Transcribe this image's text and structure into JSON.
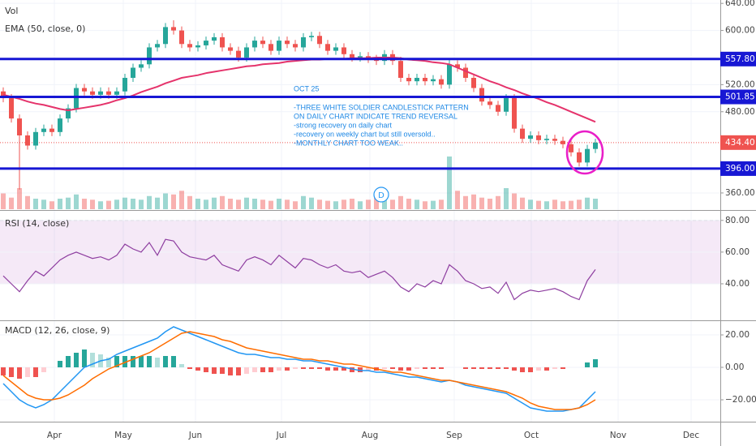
{
  "xaxis": {
    "xlim": [
      -0.4,
      88.4
    ],
    "xticks": [
      {
        "value": 6.3,
        "label": "Apr"
      },
      {
        "value": 14.8,
        "label": "May"
      },
      {
        "value": 23.7,
        "label": "Jun"
      },
      {
        "value": 34.3,
        "label": "Jul"
      },
      {
        "value": 45.2,
        "label": "Aug"
      },
      {
        "value": 55.6,
        "label": "Sep"
      },
      {
        "value": 65.1,
        "label": "Oct"
      },
      {
        "value": 75.8,
        "label": "Nov"
      },
      {
        "value": 84.8,
        "label": "Dec"
      }
    ]
  },
  "chart_data": [
    {
      "type": "candlestick",
      "up_color": "#26a69a",
      "down_color": "#ef5350",
      "ylim": [
        336,
        645
      ],
      "yticks": [
        {
          "value": 640,
          "label": "640.00"
        },
        {
          "value": 600,
          "label": "600.00"
        },
        {
          "value": 520,
          "label": "520.00"
        },
        {
          "value": 480,
          "label": "480.00"
        },
        {
          "value": 360,
          "label": "360.00"
        }
      ],
      "open": [
        510,
        500,
        470,
        445,
        430,
        450,
        455,
        450,
        470,
        485,
        515,
        510,
        505,
        510,
        505,
        510,
        530,
        545,
        550,
        575,
        580,
        605,
        600,
        580,
        575,
        578,
        585,
        590,
        575,
        570,
        560,
        575,
        585,
        580,
        570,
        585,
        580,
        575,
        590,
        592,
        580,
        570,
        575,
        565,
        560,
        562,
        558,
        555,
        565,
        555,
        530,
        525,
        530,
        525,
        528,
        520,
        550,
        545,
        530,
        515,
        495,
        490,
        480,
        500,
        455,
        440,
        445,
        438,
        440,
        437,
        432,
        420,
        405,
        425
      ],
      "high": [
        516,
        506,
        476,
        451,
        456,
        461,
        461,
        476,
        491,
        521,
        521,
        516,
        516,
        516,
        516,
        536,
        551,
        556,
        581,
        586,
        611,
        615,
        606,
        586,
        584,
        591,
        596,
        596,
        581,
        576,
        581,
        591,
        591,
        586,
        591,
        591,
        586,
        596,
        598,
        598,
        586,
        581,
        581,
        571,
        568,
        568,
        564,
        571,
        571,
        561,
        536,
        536,
        536,
        534,
        534,
        558,
        556,
        551,
        536,
        521,
        501,
        496,
        506,
        506,
        461,
        451,
        451,
        446,
        446,
        443,
        438,
        426,
        431,
        440
      ],
      "low": [
        494,
        464,
        365,
        424,
        424,
        444,
        444,
        444,
        464,
        479,
        504,
        499,
        499,
        499,
        499,
        504,
        524,
        539,
        544,
        569,
        574,
        594,
        574,
        569,
        569,
        572,
        579,
        569,
        564,
        554,
        554,
        569,
        574,
        564,
        564,
        574,
        569,
        569,
        584,
        574,
        564,
        564,
        559,
        554,
        554,
        552,
        549,
        549,
        549,
        524,
        519,
        519,
        519,
        519,
        514,
        514,
        539,
        524,
        509,
        489,
        484,
        474,
        474,
        449,
        434,
        434,
        432,
        432,
        431,
        426,
        414,
        399,
        399,
        419
      ],
      "close": [
        500,
        470,
        445,
        430,
        450,
        455,
        450,
        470,
        485,
        515,
        510,
        505,
        510,
        505,
        510,
        530,
        545,
        550,
        575,
        580,
        605,
        600,
        580,
        575,
        578,
        585,
        590,
        575,
        570,
        560,
        575,
        585,
        580,
        570,
        585,
        580,
        575,
        590,
        592,
        580,
        570,
        575,
        565,
        560,
        562,
        558,
        555,
        565,
        555,
        530,
        525,
        530,
        525,
        528,
        520,
        550,
        545,
        530,
        515,
        495,
        490,
        480,
        500,
        455,
        440,
        445,
        438,
        440,
        437,
        432,
        420,
        405,
        425,
        434.4
      ],
      "volume": {
        "name": "Vol",
        "values": [
          30,
          22,
          40,
          25,
          20,
          18,
          15,
          20,
          22,
          28,
          20,
          18,
          15,
          16,
          18,
          22,
          20,
          18,
          25,
          22,
          30,
          28,
          35,
          25,
          20,
          18,
          22,
          25,
          20,
          18,
          22,
          20,
          18,
          16,
          20,
          18,
          15,
          25,
          22,
          18,
          16,
          15,
          18,
          20,
          15,
          18,
          22,
          30,
          18,
          25,
          20,
          18,
          15,
          16,
          18,
          100,
          35,
          25,
          28,
          22,
          20,
          25,
          40,
          30,
          22,
          18,
          16,
          15,
          18,
          15,
          16,
          18,
          22,
          20
        ]
      },
      "series": [
        {
          "name": "EMA (50, close, 0)",
          "color": "#e5336b",
          "values": [
            505,
            502,
            499,
            495,
            492,
            490,
            487,
            484,
            482,
            484,
            486,
            488,
            490,
            493,
            497,
            500,
            504,
            509,
            513,
            517,
            522,
            526,
            530,
            532,
            534,
            537,
            539,
            541,
            543,
            545,
            547,
            548,
            550,
            551,
            552,
            554,
            555,
            556,
            557,
            557,
            558,
            558,
            558,
            559,
            559,
            559,
            560,
            560,
            560,
            559,
            557,
            556,
            555,
            553,
            552,
            550,
            545,
            540,
            535,
            530,
            525,
            521,
            516,
            512,
            507,
            503,
            499,
            494,
            490,
            485,
            480,
            475,
            470,
            465
          ]
        }
      ],
      "levels": [
        {
          "value": 557.8,
          "label": "557.80"
        },
        {
          "value": 501.85,
          "label": "501.85"
        },
        {
          "value": 396,
          "label": "396.00"
        }
      ],
      "level_color": "#1717d4",
      "last_price": {
        "value": 434.4,
        "label": "434.40"
      },
      "annotations": [
        "OCT 25",
        "-THREE WHITE SOLDIER CANDLESTICK PATTERN",
        "ON DAILY CHART INDICATE TREND REVERSAL",
        "-strong recovery on daily chart",
        "-recovery on weekly chart but still oversold..",
        "-MONTHLY CHART TOO WEAK.."
      ],
      "marker": "D"
    },
    {
      "type": "line",
      "title": "RSI (14, close)",
      "ylim": [
        18.5,
        85
      ],
      "yticks": [
        {
          "value": 80,
          "label": "80.00"
        },
        {
          "value": 60,
          "label": "60.00"
        },
        {
          "value": 40,
          "label": "40.00"
        }
      ],
      "band": [
        40,
        80
      ],
      "series": [
        {
          "color": "#8e3ea0",
          "values": [
            45,
            40,
            35,
            42,
            48,
            45,
            50,
            55,
            58,
            60,
            58,
            56,
            57,
            55,
            58,
            65,
            62,
            60,
            66,
            58,
            68,
            67,
            60,
            57,
            56,
            55,
            58,
            52,
            50,
            48,
            55,
            57,
            55,
            52,
            58,
            54,
            50,
            56,
            55,
            52,
            50,
            52,
            48,
            47,
            48,
            44,
            46,
            48,
            44,
            38,
            35,
            40,
            38,
            42,
            40,
            52,
            48,
            42,
            40,
            37,
            38,
            34,
            41,
            30,
            34,
            36,
            35,
            36,
            37,
            35,
            32,
            30,
            42,
            49
          ]
        }
      ]
    },
    {
      "type": "macd",
      "title": "MACD (12, 26, close, 9)",
      "ylim": [
        -33.5,
        27.5
      ],
      "yticks": [
        {
          "value": 20,
          "label": "20.00"
        },
        {
          "value": 0,
          "label": "0.00"
        },
        {
          "value": -20,
          "label": "−20.00"
        }
      ],
      "histogram": [
        -5,
        -6,
        -7,
        -6,
        -6,
        -3,
        0,
        4,
        7,
        9,
        11,
        9,
        8,
        6,
        7,
        7,
        7,
        7,
        7,
        6,
        7,
        7,
        2,
        -1,
        -2,
        -3,
        -4,
        -4,
        -5,
        -5,
        -4,
        -3,
        -3,
        -3,
        -2,
        -2,
        -1,
        -1,
        -1,
        -1,
        -2,
        -2,
        -2,
        -3,
        -3,
        -2,
        -2,
        -1,
        -1,
        -2,
        -2,
        -1,
        -1,
        -1,
        -1,
        0,
        0,
        -1,
        -1,
        -1,
        -1,
        -1,
        -1,
        -2,
        -3,
        -3,
        -2,
        -2,
        -1,
        -1,
        0,
        0,
        3,
        5
      ],
      "series": [
        {
          "color": "#2196f3",
          "values": [
            -10,
            -15,
            -20,
            -23,
            -25,
            -23,
            -20,
            -15,
            -10,
            -5,
            0,
            2,
            4,
            5,
            8,
            10,
            12,
            14,
            16,
            18,
            22,
            25,
            23,
            21,
            19,
            17,
            15,
            13,
            11,
            9,
            8,
            8,
            7,
            6,
            6,
            5,
            5,
            4,
            4,
            3,
            2,
            1,
            0,
            -1,
            -2,
            -2,
            -3,
            -3,
            -4,
            -5,
            -6,
            -6,
            -7,
            -8,
            -9,
            -8,
            -9,
            -11,
            -12,
            -13,
            -14,
            -15,
            -16,
            -19,
            -22,
            -25,
            -26,
            -27,
            -27,
            -27,
            -26,
            -25,
            -20,
            -15
          ]
        },
        {
          "color": "#ff6d00",
          "values": [
            -5,
            -9,
            -13,
            -17,
            -19,
            -20,
            -20,
            -19,
            -17,
            -14,
            -11,
            -7,
            -4,
            -1,
            1,
            3,
            5,
            7,
            9,
            12,
            15,
            18,
            21,
            22,
            21,
            20,
            19,
            17,
            16,
            14,
            12,
            11,
            10,
            9,
            8,
            7,
            6,
            5,
            5,
            4,
            4,
            3,
            2,
            2,
            1,
            0,
            -1,
            -2,
            -3,
            -3,
            -4,
            -5,
            -6,
            -7,
            -8,
            -8,
            -9,
            -10,
            -11,
            -12,
            -13,
            -14,
            -15,
            -17,
            -19,
            -22,
            -24,
            -25,
            -26,
            -26,
            -26,
            -25,
            -23,
            -20
          ]
        }
      ]
    }
  ]
}
